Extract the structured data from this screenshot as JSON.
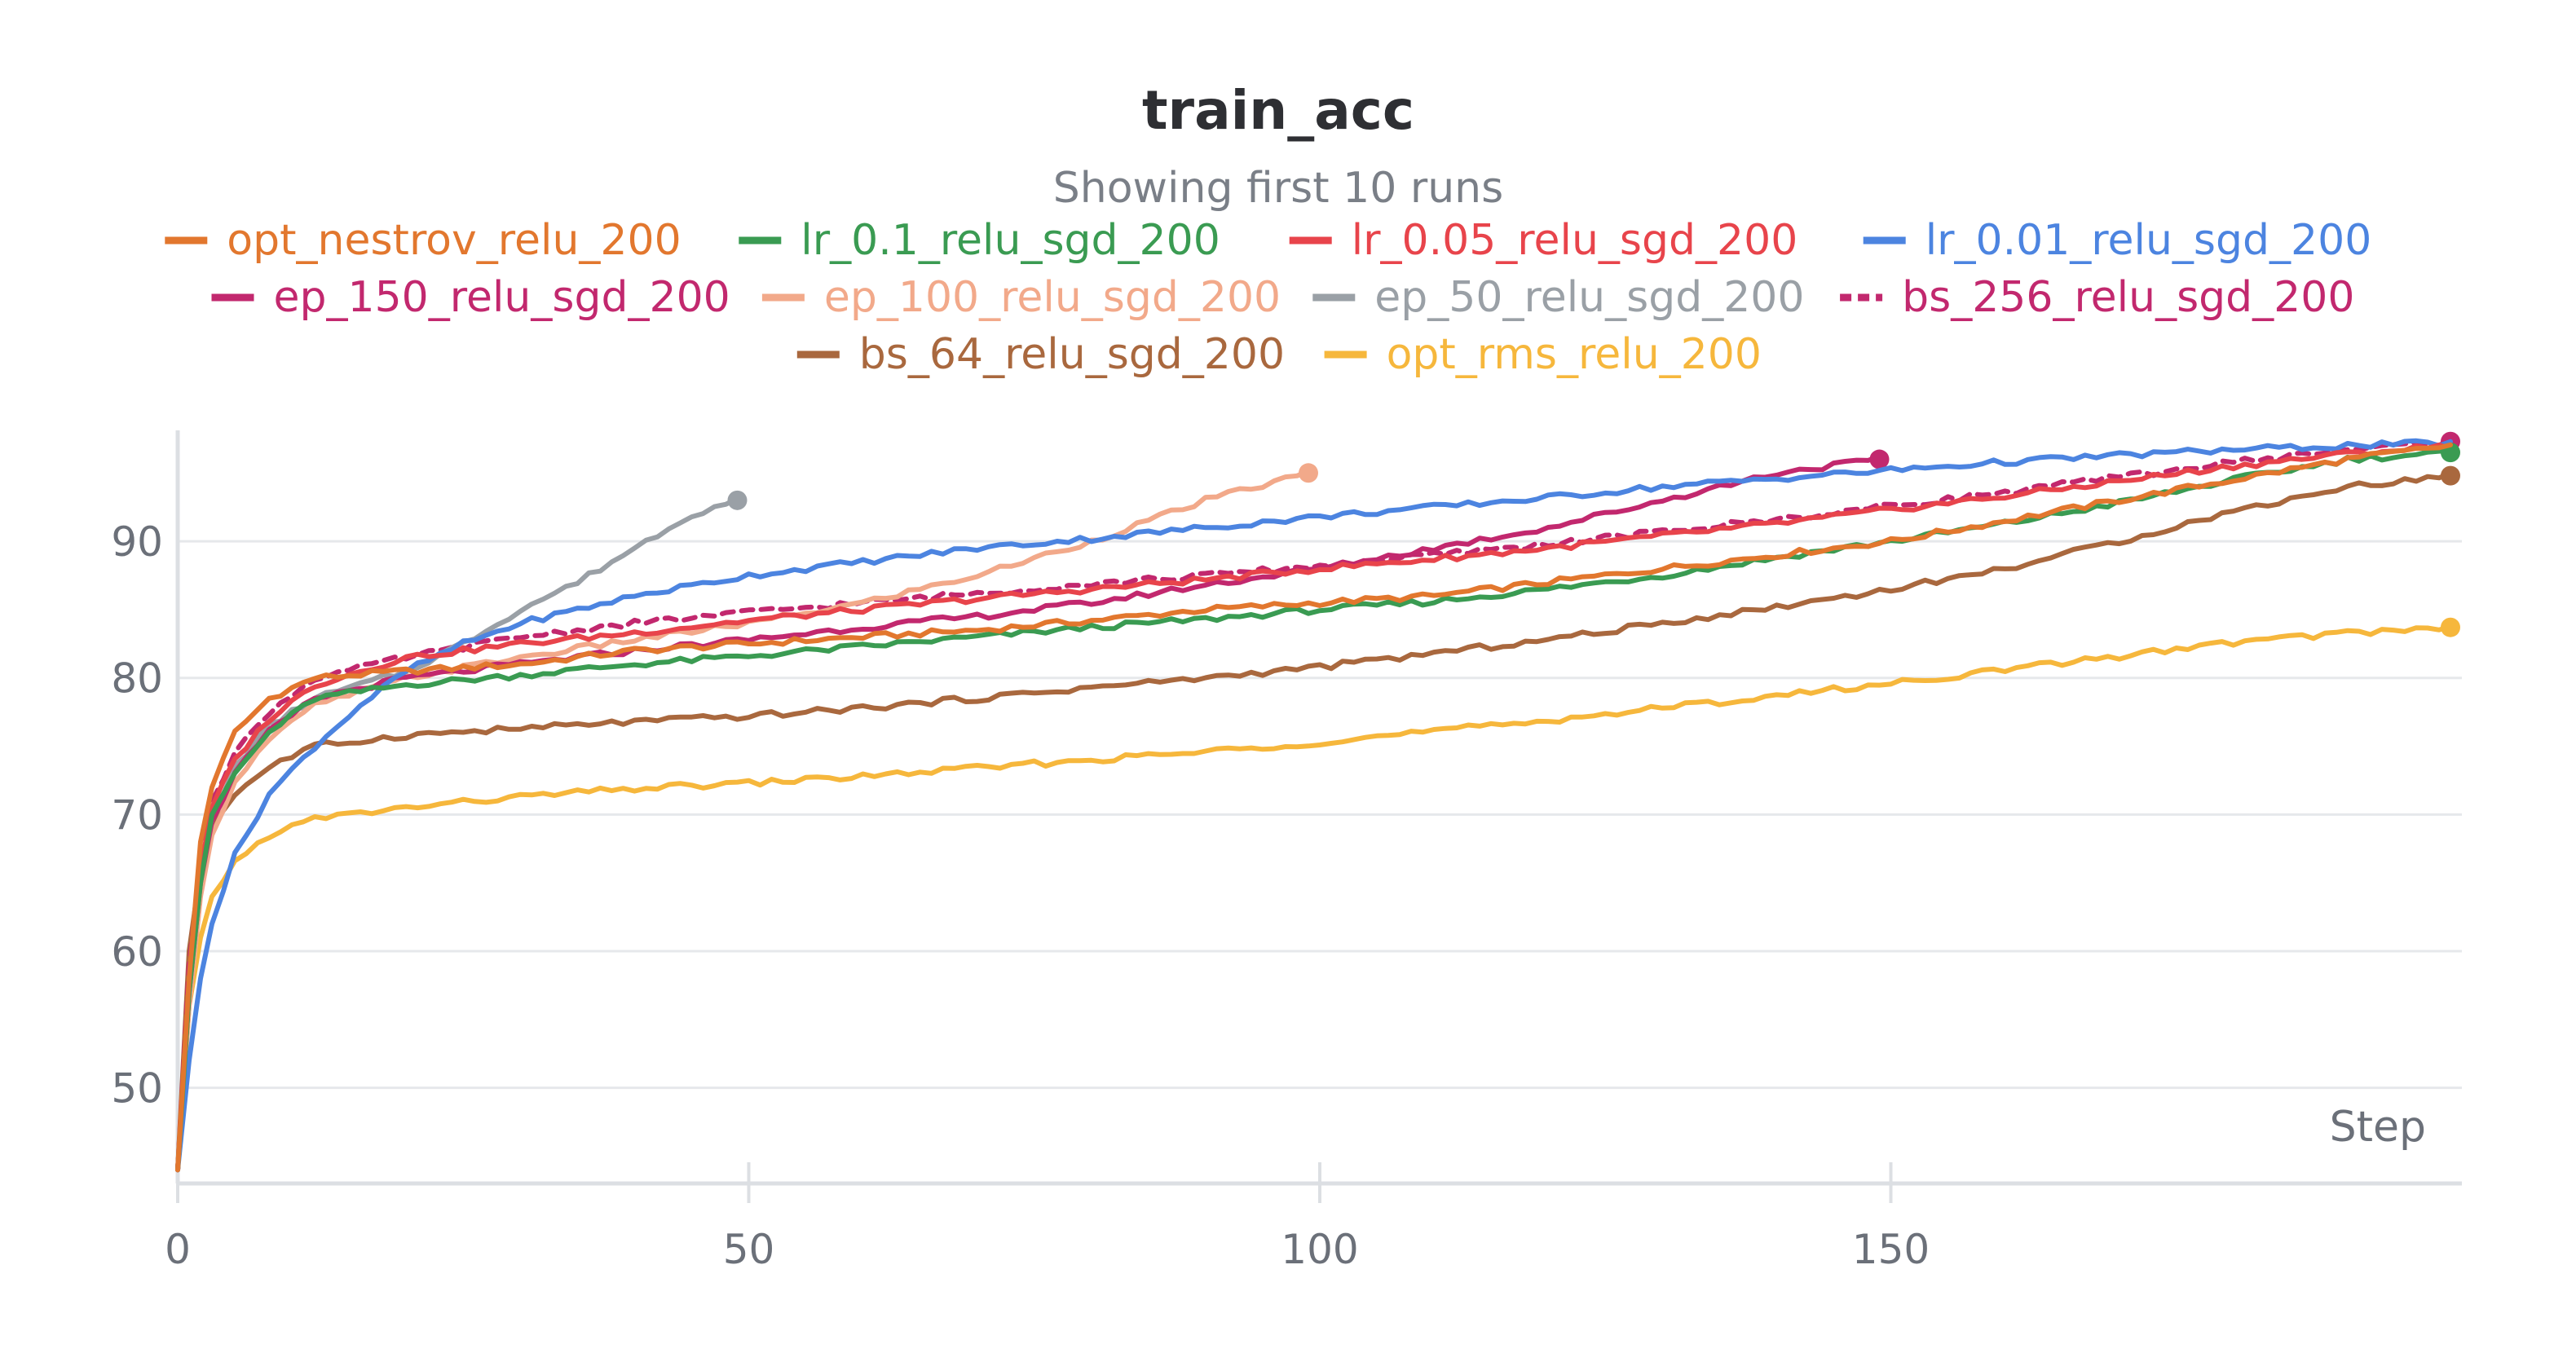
{
  "chart_data": {
    "type": "line",
    "title": "train_acc",
    "subtitle": "Showing first 10 runs",
    "xlabel": "Step",
    "ylabel": "",
    "xlim": [
      0,
      200
    ],
    "ylim": [
      43,
      98
    ],
    "xticks": [
      0,
      50,
      100,
      150
    ],
    "yticks": [
      50,
      60,
      70,
      80,
      90
    ],
    "grid": true,
    "legend_position": "top",
    "series": [
      {
        "name": "opt_nestrov_relu_200",
        "color": "#e2772e",
        "dashed": false,
        "last_step": 199,
        "end_marker": false,
        "points": [
          [
            0,
            44
          ],
          [
            1,
            58
          ],
          [
            2,
            68
          ],
          [
            3,
            72
          ],
          [
            5,
            76
          ],
          [
            8,
            78.5
          ],
          [
            12,
            80
          ],
          [
            20,
            80.5
          ],
          [
            30,
            81
          ],
          [
            40,
            82
          ],
          [
            50,
            82.5
          ],
          [
            60,
            83
          ],
          [
            70,
            83.5
          ],
          [
            80,
            84.2
          ],
          [
            90,
            85
          ],
          [
            100,
            85.5
          ],
          [
            110,
            86
          ],
          [
            120,
            87
          ],
          [
            130,
            88
          ],
          [
            140,
            89
          ],
          [
            150,
            90
          ],
          [
            160,
            91.5
          ],
          [
            170,
            93
          ],
          [
            180,
            94.5
          ],
          [
            190,
            96
          ],
          [
            199,
            97
          ]
        ]
      },
      {
        "name": "lr_0.1_relu_sgd_200",
        "color": "#3a9b52",
        "dashed": false,
        "last_step": 199,
        "end_marker": true,
        "points": [
          [
            0,
            44
          ],
          [
            1,
            57
          ],
          [
            2,
            65
          ],
          [
            3,
            70
          ],
          [
            5,
            73
          ],
          [
            8,
            76
          ],
          [
            12,
            78.5
          ],
          [
            20,
            79.5
          ],
          [
            30,
            80.2
          ],
          [
            40,
            81
          ],
          [
            50,
            81.6
          ],
          [
            60,
            82.3
          ],
          [
            70,
            83
          ],
          [
            80,
            83.7
          ],
          [
            90,
            84.3
          ],
          [
            100,
            85
          ],
          [
            110,
            85.6
          ],
          [
            120,
            86.5
          ],
          [
            130,
            87.5
          ],
          [
            140,
            88.8
          ],
          [
            150,
            90
          ],
          [
            160,
            91.3
          ],
          [
            170,
            92.8
          ],
          [
            180,
            94.5
          ],
          [
            190,
            96
          ],
          [
            199,
            96.5
          ]
        ]
      },
      {
        "name": "lr_0.05_relu_sgd_200",
        "color": "#e8444b",
        "dashed": false,
        "last_step": 199,
        "end_marker": false,
        "points": [
          [
            0,
            44
          ],
          [
            1,
            58
          ],
          [
            2,
            66
          ],
          [
            3,
            70.5
          ],
          [
            5,
            74
          ],
          [
            8,
            77
          ],
          [
            12,
            79.5
          ],
          [
            20,
            81.5
          ],
          [
            30,
            82.5
          ],
          [
            40,
            83.3
          ],
          [
            50,
            84.2
          ],
          [
            60,
            85
          ],
          [
            70,
            85.8
          ],
          [
            80,
            86.5
          ],
          [
            90,
            87.2
          ],
          [
            100,
            88
          ],
          [
            110,
            88.7
          ],
          [
            120,
            89.5
          ],
          [
            130,
            90.4
          ],
          [
            140,
            91.3
          ],
          [
            150,
            92.3
          ],
          [
            160,
            93.3
          ],
          [
            170,
            94.4
          ],
          [
            180,
            95.5
          ],
          [
            190,
            96.4
          ],
          [
            199,
            97
          ]
        ]
      },
      {
        "name": "lr_0.01_relu_sgd_200",
        "color": "#4c84e0",
        "dashed": false,
        "last_step": 199,
        "end_marker": false,
        "points": [
          [
            0,
            44
          ],
          [
            1,
            52
          ],
          [
            2,
            58
          ],
          [
            3,
            62
          ],
          [
            5,
            67
          ],
          [
            8,
            71.5
          ],
          [
            12,
            75
          ],
          [
            16,
            78
          ],
          [
            20,
            80.5
          ],
          [
            25,
            82.5
          ],
          [
            30,
            84
          ],
          [
            40,
            86
          ],
          [
            50,
            87.5
          ],
          [
            60,
            88.5
          ],
          [
            70,
            89.5
          ],
          [
            80,
            90.2
          ],
          [
            90,
            91
          ],
          [
            100,
            91.8
          ],
          [
            110,
            92.5
          ],
          [
            120,
            93.2
          ],
          [
            130,
            94
          ],
          [
            140,
            94.6
          ],
          [
            150,
            95.2
          ],
          [
            160,
            95.8
          ],
          [
            170,
            96.3
          ],
          [
            180,
            96.7
          ],
          [
            190,
            97
          ],
          [
            199,
            97.2
          ]
        ]
      },
      {
        "name": "ep_150_relu_sgd_200",
        "color": "#c2286e",
        "dashed": false,
        "last_step": 149,
        "end_marker": true,
        "points": [
          [
            0,
            44
          ],
          [
            1,
            57
          ],
          [
            2,
            65
          ],
          [
            3,
            69.5
          ],
          [
            5,
            73
          ],
          [
            8,
            76
          ],
          [
            12,
            78.5
          ],
          [
            20,
            80
          ],
          [
            30,
            81
          ],
          [
            40,
            82
          ],
          [
            50,
            82.8
          ],
          [
            60,
            83.7
          ],
          [
            70,
            84.5
          ],
          [
            80,
            85.5
          ],
          [
            90,
            86.8
          ],
          [
            100,
            88
          ],
          [
            110,
            89.5
          ],
          [
            120,
            91
          ],
          [
            130,
            93
          ],
          [
            140,
            95
          ],
          [
            149,
            96
          ]
        ]
      },
      {
        "name": "ep_100_relu_sgd_200",
        "color": "#f2a98a",
        "dashed": false,
        "last_step": 99,
        "end_marker": true,
        "points": [
          [
            0,
            44
          ],
          [
            1,
            56
          ],
          [
            2,
            64
          ],
          [
            3,
            68.5
          ],
          [
            5,
            72.5
          ],
          [
            8,
            75.5
          ],
          [
            12,
            78
          ],
          [
            20,
            80
          ],
          [
            30,
            81.5
          ],
          [
            40,
            82.8
          ],
          [
            50,
            84
          ],
          [
            60,
            85.5
          ],
          [
            70,
            87.5
          ],
          [
            80,
            90
          ],
          [
            90,
            93
          ],
          [
            99,
            95
          ]
        ]
      },
      {
        "name": "ep_50_relu_sgd_200",
        "color": "#9aa0a6",
        "dashed": false,
        "last_step": 49,
        "end_marker": true,
        "points": [
          [
            0,
            44
          ],
          [
            1,
            57
          ],
          [
            2,
            65
          ],
          [
            3,
            69.5
          ],
          [
            5,
            73.5
          ],
          [
            8,
            76.5
          ],
          [
            12,
            78.5
          ],
          [
            20,
            80.5
          ],
          [
            25,
            82.5
          ],
          [
            30,
            85
          ],
          [
            35,
            87
          ],
          [
            40,
            89.5
          ],
          [
            45,
            92
          ],
          [
            49,
            93
          ]
        ]
      },
      {
        "name": "bs_256_relu_sgd_200",
        "color": "#c2286e",
        "dashed": true,
        "last_step": 199,
        "end_marker": true,
        "points": [
          [
            0,
            44
          ],
          [
            1,
            59
          ],
          [
            2,
            66.5
          ],
          [
            3,
            71
          ],
          [
            5,
            74.5
          ],
          [
            8,
            77.5
          ],
          [
            12,
            80
          ],
          [
            20,
            81.5
          ],
          [
            30,
            83
          ],
          [
            40,
            84
          ],
          [
            50,
            84.8
          ],
          [
            60,
            85.5
          ],
          [
            70,
            86.2
          ],
          [
            80,
            86.9
          ],
          [
            90,
            87.5
          ],
          [
            100,
            88.2
          ],
          [
            110,
            89
          ],
          [
            120,
            89.8
          ],
          [
            130,
            90.7
          ],
          [
            140,
            91.6
          ],
          [
            150,
            92.6
          ],
          [
            160,
            93.6
          ],
          [
            170,
            94.7
          ],
          [
            180,
            95.8
          ],
          [
            190,
            96.7
          ],
          [
            199,
            97.3
          ]
        ]
      },
      {
        "name": "bs_64_relu_sgd_200",
        "color": "#a9683e",
        "dashed": false,
        "last_step": 199,
        "end_marker": true,
        "points": [
          [
            0,
            44
          ],
          [
            1,
            60
          ],
          [
            2,
            66
          ],
          [
            3,
            69
          ],
          [
            5,
            71.5
          ],
          [
            8,
            73.5
          ],
          [
            12,
            75
          ],
          [
            20,
            75.8
          ],
          [
            30,
            76.3
          ],
          [
            40,
            76.8
          ],
          [
            50,
            77.2
          ],
          [
            60,
            77.8
          ],
          [
            70,
            78.5
          ],
          [
            80,
            79.3
          ],
          [
            90,
            80
          ],
          [
            100,
            80.8
          ],
          [
            110,
            81.8
          ],
          [
            120,
            82.8
          ],
          [
            130,
            84
          ],
          [
            140,
            85.2
          ],
          [
            150,
            86.5
          ],
          [
            160,
            88
          ],
          [
            170,
            90
          ],
          [
            180,
            92.2
          ],
          [
            190,
            94
          ],
          [
            199,
            94.8
          ]
        ]
      },
      {
        "name": "opt_rms_relu_200",
        "color": "#f6b73c",
        "dashed": false,
        "last_step": 199,
        "end_marker": true,
        "points": [
          [
            0,
            44
          ],
          [
            1,
            56
          ],
          [
            2,
            61
          ],
          [
            3,
            64
          ],
          [
            5,
            66.5
          ],
          [
            8,
            68.5
          ],
          [
            12,
            69.7
          ],
          [
            20,
            70.5
          ],
          [
            30,
            71.3
          ],
          [
            40,
            71.9
          ],
          [
            50,
            72.3
          ],
          [
            60,
            72.8
          ],
          [
            70,
            73.4
          ],
          [
            80,
            74
          ],
          [
            90,
            74.6
          ],
          [
            100,
            75.3
          ],
          [
            110,
            76.1
          ],
          [
            120,
            76.9
          ],
          [
            130,
            77.8
          ],
          [
            140,
            78.7
          ],
          [
            150,
            79.6
          ],
          [
            160,
            80.6
          ],
          [
            170,
            81.6
          ],
          [
            180,
            82.6
          ],
          [
            190,
            83.3
          ],
          [
            199,
            83.7
          ]
        ]
      }
    ]
  }
}
